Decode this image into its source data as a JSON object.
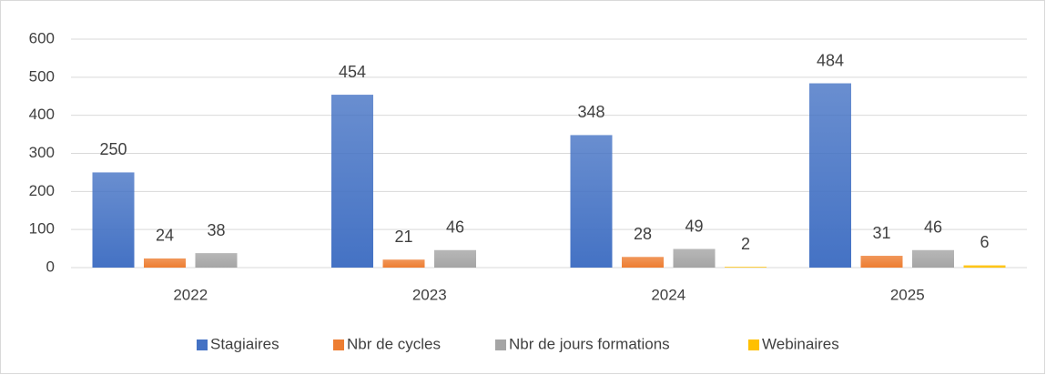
{
  "chart_data": {
    "type": "bar",
    "categories": [
      "2022",
      "2023",
      "2024",
      "2025"
    ],
    "series": [
      {
        "name": "Stagiaires",
        "color": "#4472c4",
        "values": [
          250,
          454,
          348,
          484
        ]
      },
      {
        "name": "Nbr de cycles",
        "color": "#ed7d31",
        "values": [
          24,
          21,
          28,
          31
        ]
      },
      {
        "name": "Nbr de jours formations",
        "color": "#a5a5a5",
        "values": [
          38,
          46,
          49,
          46
        ]
      },
      {
        "name": "Webinaires",
        "color": "#ffc000",
        "values": [
          null,
          null,
          2,
          6
        ]
      }
    ],
    "ylim": [
      0,
      600
    ],
    "yticks": [
      0,
      100,
      200,
      300,
      400,
      500,
      600
    ],
    "grid": true,
    "legend": "bottom"
  }
}
